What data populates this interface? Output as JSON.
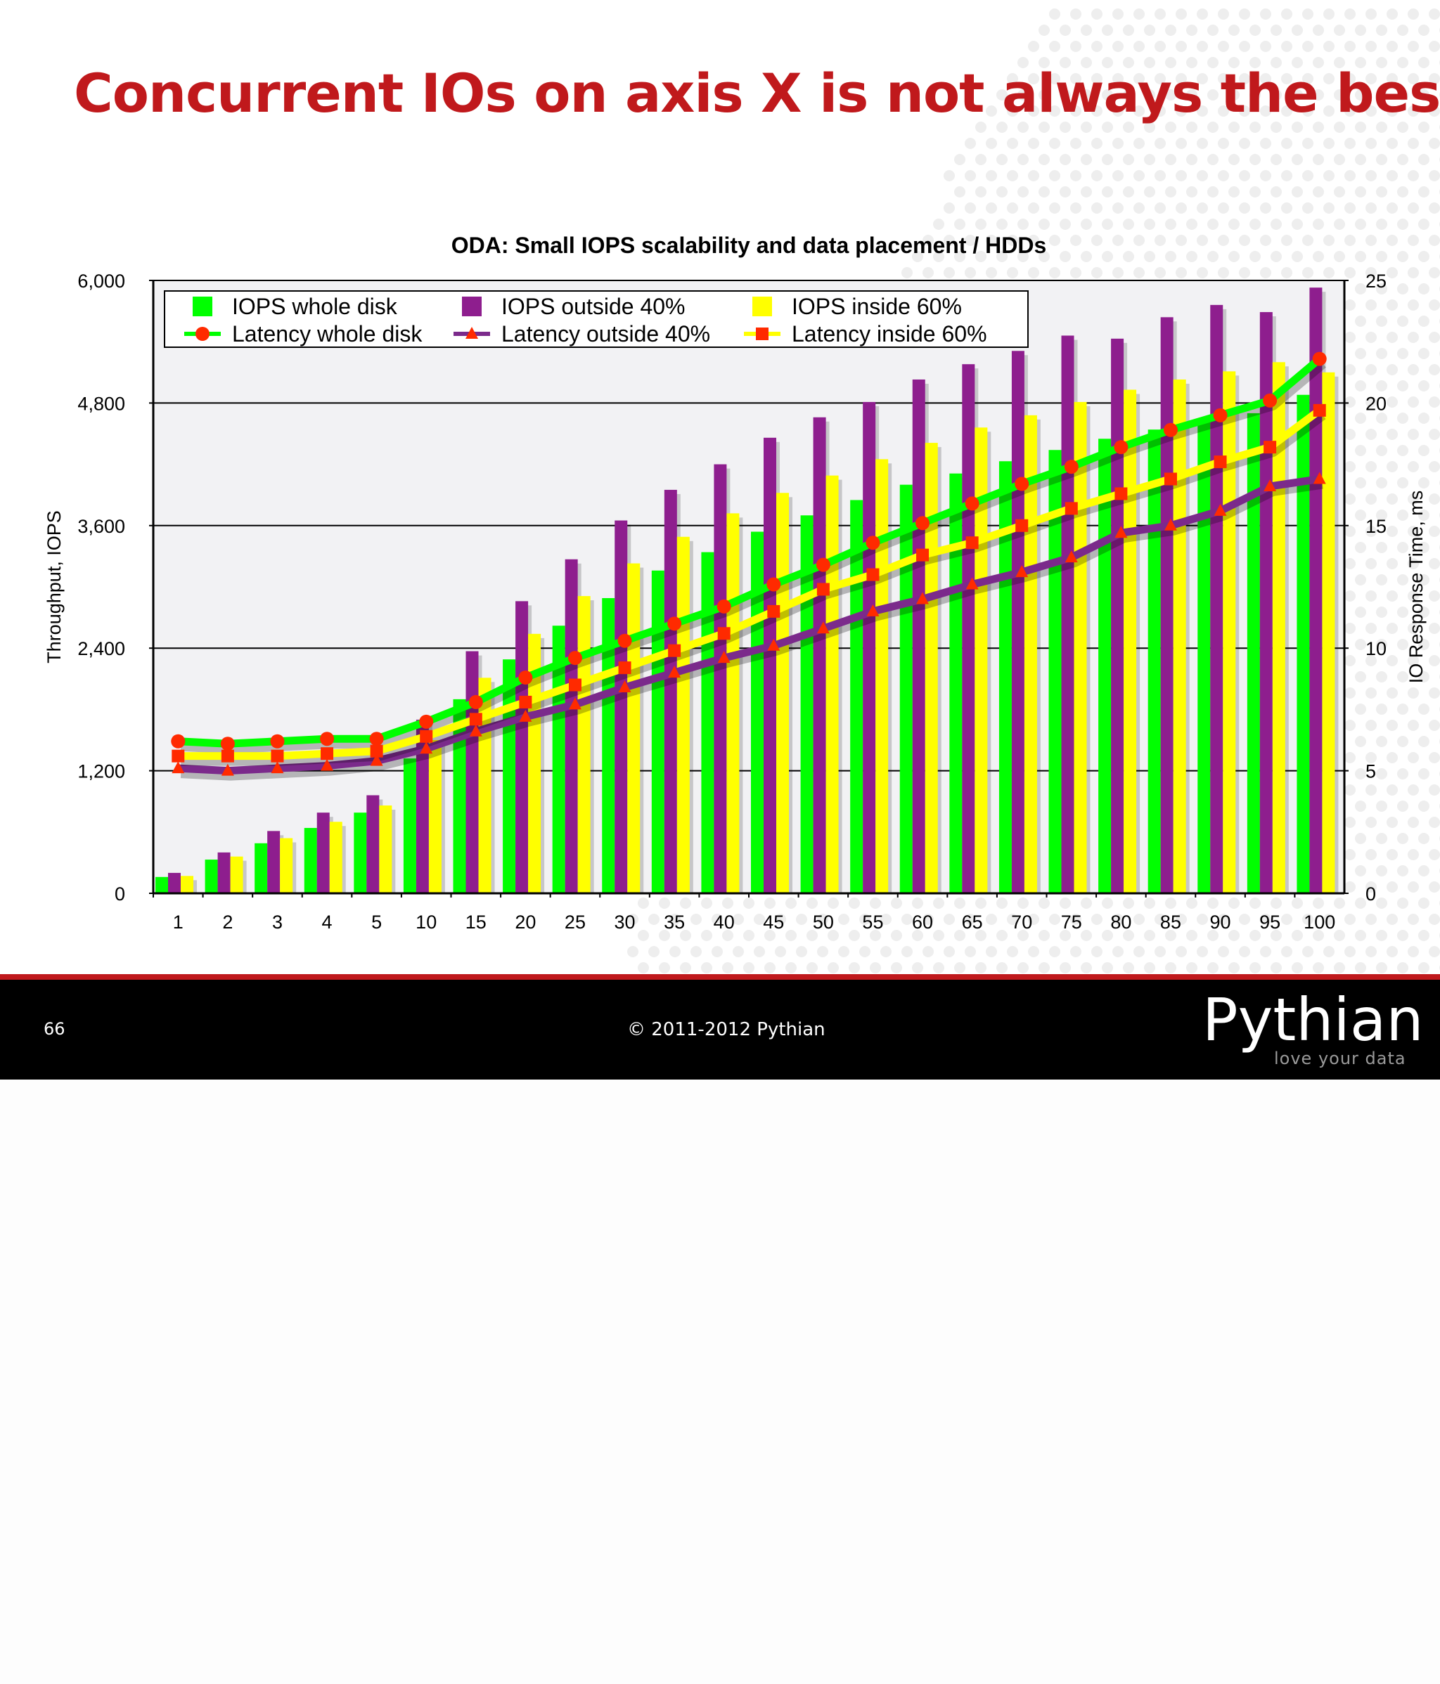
{
  "slide": {
    "title": "Concurrent IOs on axis X is not always the best...",
    "page_number": "66",
    "copyright": "© 2011-2012 Pythian",
    "brand": {
      "name": "Pythian",
      "tagline": "love your data"
    }
  },
  "colors": {
    "title": "#c0191c",
    "iops_whole": "#00ff00",
    "iops_outside": "#8e1e8e",
    "iops_inside": "#ffff00",
    "latency_marker": "#ff2a00",
    "latency_outside_line": "#7b2a8b"
  },
  "chart_data": {
    "type": "bar",
    "title": "ODA: Small IOPS scalability and data placement / HDDs",
    "ylabel": "Throughput, IOPS",
    "y2label": "IO Response Time, ms",
    "ylim": [
      0,
      6000
    ],
    "y2lim": [
      0,
      25
    ],
    "yticks": [
      "0",
      "1,200",
      "2,400",
      "3,600",
      "4,800",
      "6,000"
    ],
    "y2ticks": [
      "0",
      "5",
      "10",
      "15",
      "20",
      "25"
    ],
    "grid": true,
    "legend_position": "top-left",
    "categories": [
      "1",
      "2",
      "3",
      "4",
      "5",
      "10",
      "15",
      "20",
      "25",
      "30",
      "35",
      "40",
      "45",
      "50",
      "55",
      "60",
      "65",
      "70",
      "75",
      "80",
      "85",
      "90",
      "95",
      "100"
    ],
    "series": [
      {
        "name": "IOPS whole disk",
        "kind": "bar",
        "axis": "left",
        "values": [
          160,
          330,
          490,
          640,
          790,
          1320,
          1900,
          2290,
          2620,
          2890,
          3160,
          3340,
          3540,
          3700,
          3850,
          4000,
          4110,
          4230,
          4340,
          4450,
          4540,
          4640,
          4700,
          4880
        ]
      },
      {
        "name": "IOPS outside 40%",
        "kind": "bar",
        "axis": "left",
        "values": [
          200,
          400,
          610,
          790,
          960,
          1700,
          2370,
          2860,
          3270,
          3650,
          3950,
          4200,
          4460,
          4660,
          4810,
          5030,
          5180,
          5310,
          5460,
          5430,
          5640,
          5760,
          5690,
          5930
        ]
      },
      {
        "name": "IOPS inside 60%",
        "kind": "bar",
        "axis": "left",
        "values": [
          170,
          360,
          540,
          700,
          860,
          1500,
          2110,
          2540,
          2910,
          3230,
          3490,
          3720,
          3920,
          4090,
          4250,
          4410,
          4560,
          4680,
          4810,
          4930,
          5030,
          5110,
          5200,
          5100
        ]
      },
      {
        "name": "Latency whole disk",
        "kind": "line",
        "marker": "circle",
        "axis": "right",
        "values": [
          6.2,
          6.1,
          6.2,
          6.3,
          6.3,
          7.0,
          7.8,
          8.8,
          9.6,
          10.3,
          11.0,
          11.7,
          12.6,
          13.4,
          14.3,
          15.1,
          15.9,
          16.7,
          17.4,
          18.2,
          18.9,
          19.5,
          20.1,
          21.8
        ]
      },
      {
        "name": "Latency outside 40%",
        "kind": "line",
        "marker": "triangle",
        "axis": "right",
        "values": [
          5.1,
          5.0,
          5.1,
          5.2,
          5.4,
          5.9,
          6.6,
          7.2,
          7.7,
          8.4,
          9.0,
          9.6,
          10.1,
          10.8,
          11.5,
          12.0,
          12.6,
          13.1,
          13.7,
          14.7,
          15.0,
          15.6,
          16.6,
          16.9
        ]
      },
      {
        "name": "Latency inside 60%",
        "kind": "line",
        "marker": "square",
        "axis": "right",
        "values": [
          5.6,
          5.6,
          5.6,
          5.7,
          5.8,
          6.4,
          7.1,
          7.8,
          8.5,
          9.2,
          9.9,
          10.6,
          11.5,
          12.4,
          13.0,
          13.8,
          14.3,
          15.0,
          15.7,
          16.3,
          16.9,
          17.6,
          18.2,
          19.7
        ]
      }
    ]
  }
}
